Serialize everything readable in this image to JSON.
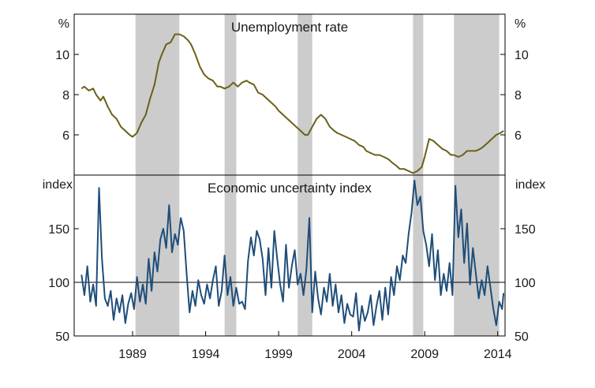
{
  "chart_data": [
    {
      "type": "line",
      "title": "Unemployment rate",
      "unit_label": "%",
      "ylim": [
        4,
        12
      ],
      "yticks": [
        6,
        8,
        10
      ],
      "xlim": [
        1985.0,
        2014.5
      ],
      "recession_shading": [
        [
          1989.2,
          1992.2
        ],
        [
          1995.3,
          1996.1
        ],
        [
          2000.3,
          2001.3
        ],
        [
          2008.2,
          2008.9
        ],
        [
          2011.0,
          2014.1
        ]
      ],
      "color": "#6b6019",
      "series": [
        {
          "x": [
            1985.5,
            1985.7,
            1986.0,
            1986.3,
            1986.5,
            1986.8,
            1987.0,
            1987.3,
            1987.6,
            1987.9,
            1988.2,
            1988.5,
            1988.8,
            1989.0,
            1989.3,
            1989.6,
            1989.9,
            1990.2,
            1990.5,
            1990.8,
            1991.0,
            1991.3,
            1991.6,
            1991.9,
            1992.2,
            1992.5,
            1992.8,
            1993.0,
            1993.3,
            1993.6,
            1993.9,
            1994.2,
            1994.5,
            1994.8,
            1995.0,
            1995.3,
            1995.6,
            1995.9,
            1996.2,
            1996.5,
            1996.8,
            1997.0,
            1997.3,
            1997.6,
            1997.9,
            1998.2,
            1998.5,
            1998.8,
            1999.0,
            1999.3,
            1999.6,
            1999.9,
            2000.2,
            2000.5,
            2000.8,
            2001.0,
            2001.3,
            2001.6,
            2001.9,
            2002.2,
            2002.5,
            2002.8,
            2003.0,
            2003.3,
            2003.6,
            2003.9,
            2004.2,
            2004.5,
            2004.8,
            2005.0,
            2005.3,
            2005.6,
            2005.9,
            2006.2,
            2006.5,
            2006.8,
            2007.0,
            2007.3,
            2007.6,
            2007.9,
            2008.2,
            2008.5,
            2008.8,
            2009.0,
            2009.3,
            2009.6,
            2009.9,
            2010.2,
            2010.5,
            2010.8,
            2011.0,
            2011.3,
            2011.6,
            2011.9,
            2012.2,
            2012.5,
            2012.8,
            2013.0,
            2013.3,
            2013.6,
            2013.9,
            2014.2,
            2014.4
          ],
          "values": [
            8.3,
            8.4,
            8.2,
            8.3,
            8.0,
            7.7,
            7.9,
            7.4,
            7.0,
            6.8,
            6.4,
            6.2,
            6.0,
            5.9,
            6.1,
            6.6,
            7.0,
            7.8,
            8.5,
            9.6,
            10.0,
            10.5,
            10.6,
            11.0,
            11.0,
            10.9,
            10.7,
            10.5,
            10.0,
            9.4,
            9.0,
            8.8,
            8.7,
            8.4,
            8.4,
            8.3,
            8.4,
            8.6,
            8.4,
            8.6,
            8.7,
            8.6,
            8.5,
            8.1,
            8.0,
            7.8,
            7.6,
            7.4,
            7.2,
            7.0,
            6.8,
            6.6,
            6.4,
            6.2,
            6.0,
            6.0,
            6.4,
            6.8,
            7.0,
            6.8,
            6.4,
            6.2,
            6.1,
            6.0,
            5.9,
            5.8,
            5.7,
            5.5,
            5.4,
            5.2,
            5.1,
            5.0,
            5.0,
            4.9,
            4.8,
            4.6,
            4.5,
            4.3,
            4.3,
            4.2,
            4.1,
            4.2,
            4.4,
            4.9,
            5.8,
            5.7,
            5.5,
            5.3,
            5.2,
            5.0,
            5.0,
            4.9,
            5.0,
            5.2,
            5.2,
            5.2,
            5.3,
            5.4,
            5.6,
            5.8,
            6.0,
            6.1,
            6.2
          ]
        }
      ]
    },
    {
      "type": "line",
      "title": "Economic uncertainty index",
      "unit_label": "index",
      "ylim": [
        50,
        200
      ],
      "yticks": [
        50,
        100,
        150
      ],
      "reference_line": 100,
      "xlim": [
        1985.0,
        2014.5
      ],
      "categories": [
        "1989",
        "1994",
        "1999",
        "2004",
        "2009",
        "2014"
      ],
      "recession_shading": [
        [
          1989.2,
          1992.2
        ],
        [
          1995.3,
          1996.1
        ],
        [
          2000.3,
          2001.3
        ],
        [
          2008.2,
          2008.9
        ],
        [
          2011.0,
          2014.1
        ]
      ],
      "color": "#1f4e79",
      "series": [
        {
          "x": [
            1985.5,
            1985.7,
            1985.9,
            1986.1,
            1986.3,
            1986.5,
            1986.7,
            1986.9,
            1987.1,
            1987.3,
            1987.5,
            1987.7,
            1987.9,
            1988.1,
            1988.3,
            1988.5,
            1988.7,
            1988.9,
            1989.1,
            1989.3,
            1989.5,
            1989.7,
            1989.9,
            1990.1,
            1990.3,
            1990.5,
            1990.7,
            1990.9,
            1991.1,
            1991.3,
            1991.5,
            1991.7,
            1991.9,
            1992.1,
            1992.3,
            1992.5,
            1992.7,
            1992.9,
            1993.1,
            1993.3,
            1993.5,
            1993.7,
            1993.9,
            1994.1,
            1994.3,
            1994.5,
            1994.7,
            1994.9,
            1995.1,
            1995.3,
            1995.5,
            1995.7,
            1995.9,
            1996.1,
            1996.3,
            1996.5,
            1996.7,
            1996.9,
            1997.1,
            1997.3,
            1997.5,
            1997.7,
            1997.9,
            1998.1,
            1998.3,
            1998.5,
            1998.7,
            1998.9,
            1999.1,
            1999.3,
            1999.5,
            1999.7,
            1999.9,
            2000.1,
            2000.3,
            2000.5,
            2000.7,
            2000.9,
            2001.1,
            2001.3,
            2001.5,
            2001.7,
            2001.9,
            2002.1,
            2002.3,
            2002.5,
            2002.7,
            2002.9,
            2003.1,
            2003.3,
            2003.5,
            2003.7,
            2003.9,
            2004.1,
            2004.3,
            2004.5,
            2004.7,
            2004.9,
            2005.1,
            2005.3,
            2005.5,
            2005.7,
            2005.9,
            2006.1,
            2006.3,
            2006.5,
            2006.7,
            2006.9,
            2007.1,
            2007.3,
            2007.5,
            2007.7,
            2007.9,
            2008.1,
            2008.3,
            2008.5,
            2008.7,
            2008.9,
            2009.1,
            2009.3,
            2009.5,
            2009.7,
            2009.9,
            2010.1,
            2010.3,
            2010.5,
            2010.7,
            2010.9,
            2011.1,
            2011.3,
            2011.5,
            2011.7,
            2011.9,
            2012.1,
            2012.3,
            2012.5,
            2012.7,
            2012.9,
            2013.1,
            2013.3,
            2013.5,
            2013.7,
            2013.9,
            2014.1,
            2014.3,
            2014.4
          ],
          "values": [
            107,
            88,
            115,
            82,
            98,
            78,
            188,
            122,
            85,
            78,
            92,
            65,
            85,
            72,
            88,
            62,
            80,
            90,
            75,
            105,
            82,
            98,
            80,
            122,
            92,
            128,
            110,
            140,
            150,
            132,
            172,
            128,
            145,
            135,
            160,
            148,
            108,
            72,
            92,
            78,
            102,
            88,
            80,
            98,
            85,
            102,
            115,
            78,
            92,
            125,
            88,
            105,
            78,
            95,
            80,
            82,
            75,
            120,
            142,
            125,
            148,
            140,
            122,
            88,
            132,
            95,
            148,
            122,
            98,
            82,
            135,
            95,
            115,
            130,
            98,
            108,
            88,
            112,
            160,
            72,
            110,
            85,
            70,
            95,
            82,
            108,
            78,
            98,
            72,
            88,
            62,
            80,
            70,
            68,
            90,
            55,
            78,
            64,
            72,
            88,
            60,
            78,
            92,
            65,
            95,
            70,
            105,
            88,
            115,
            102,
            125,
            118,
            145,
            165,
            195,
            172,
            180,
            148,
            135,
            115,
            145,
            102,
            130,
            88,
            108,
            92,
            118,
            88,
            190,
            142,
            168,
            118,
            155,
            98,
            132,
            108,
            85,
            102,
            88,
            115,
            95,
            75,
            60,
            82,
            75,
            90
          ]
        }
      ]
    }
  ]
}
